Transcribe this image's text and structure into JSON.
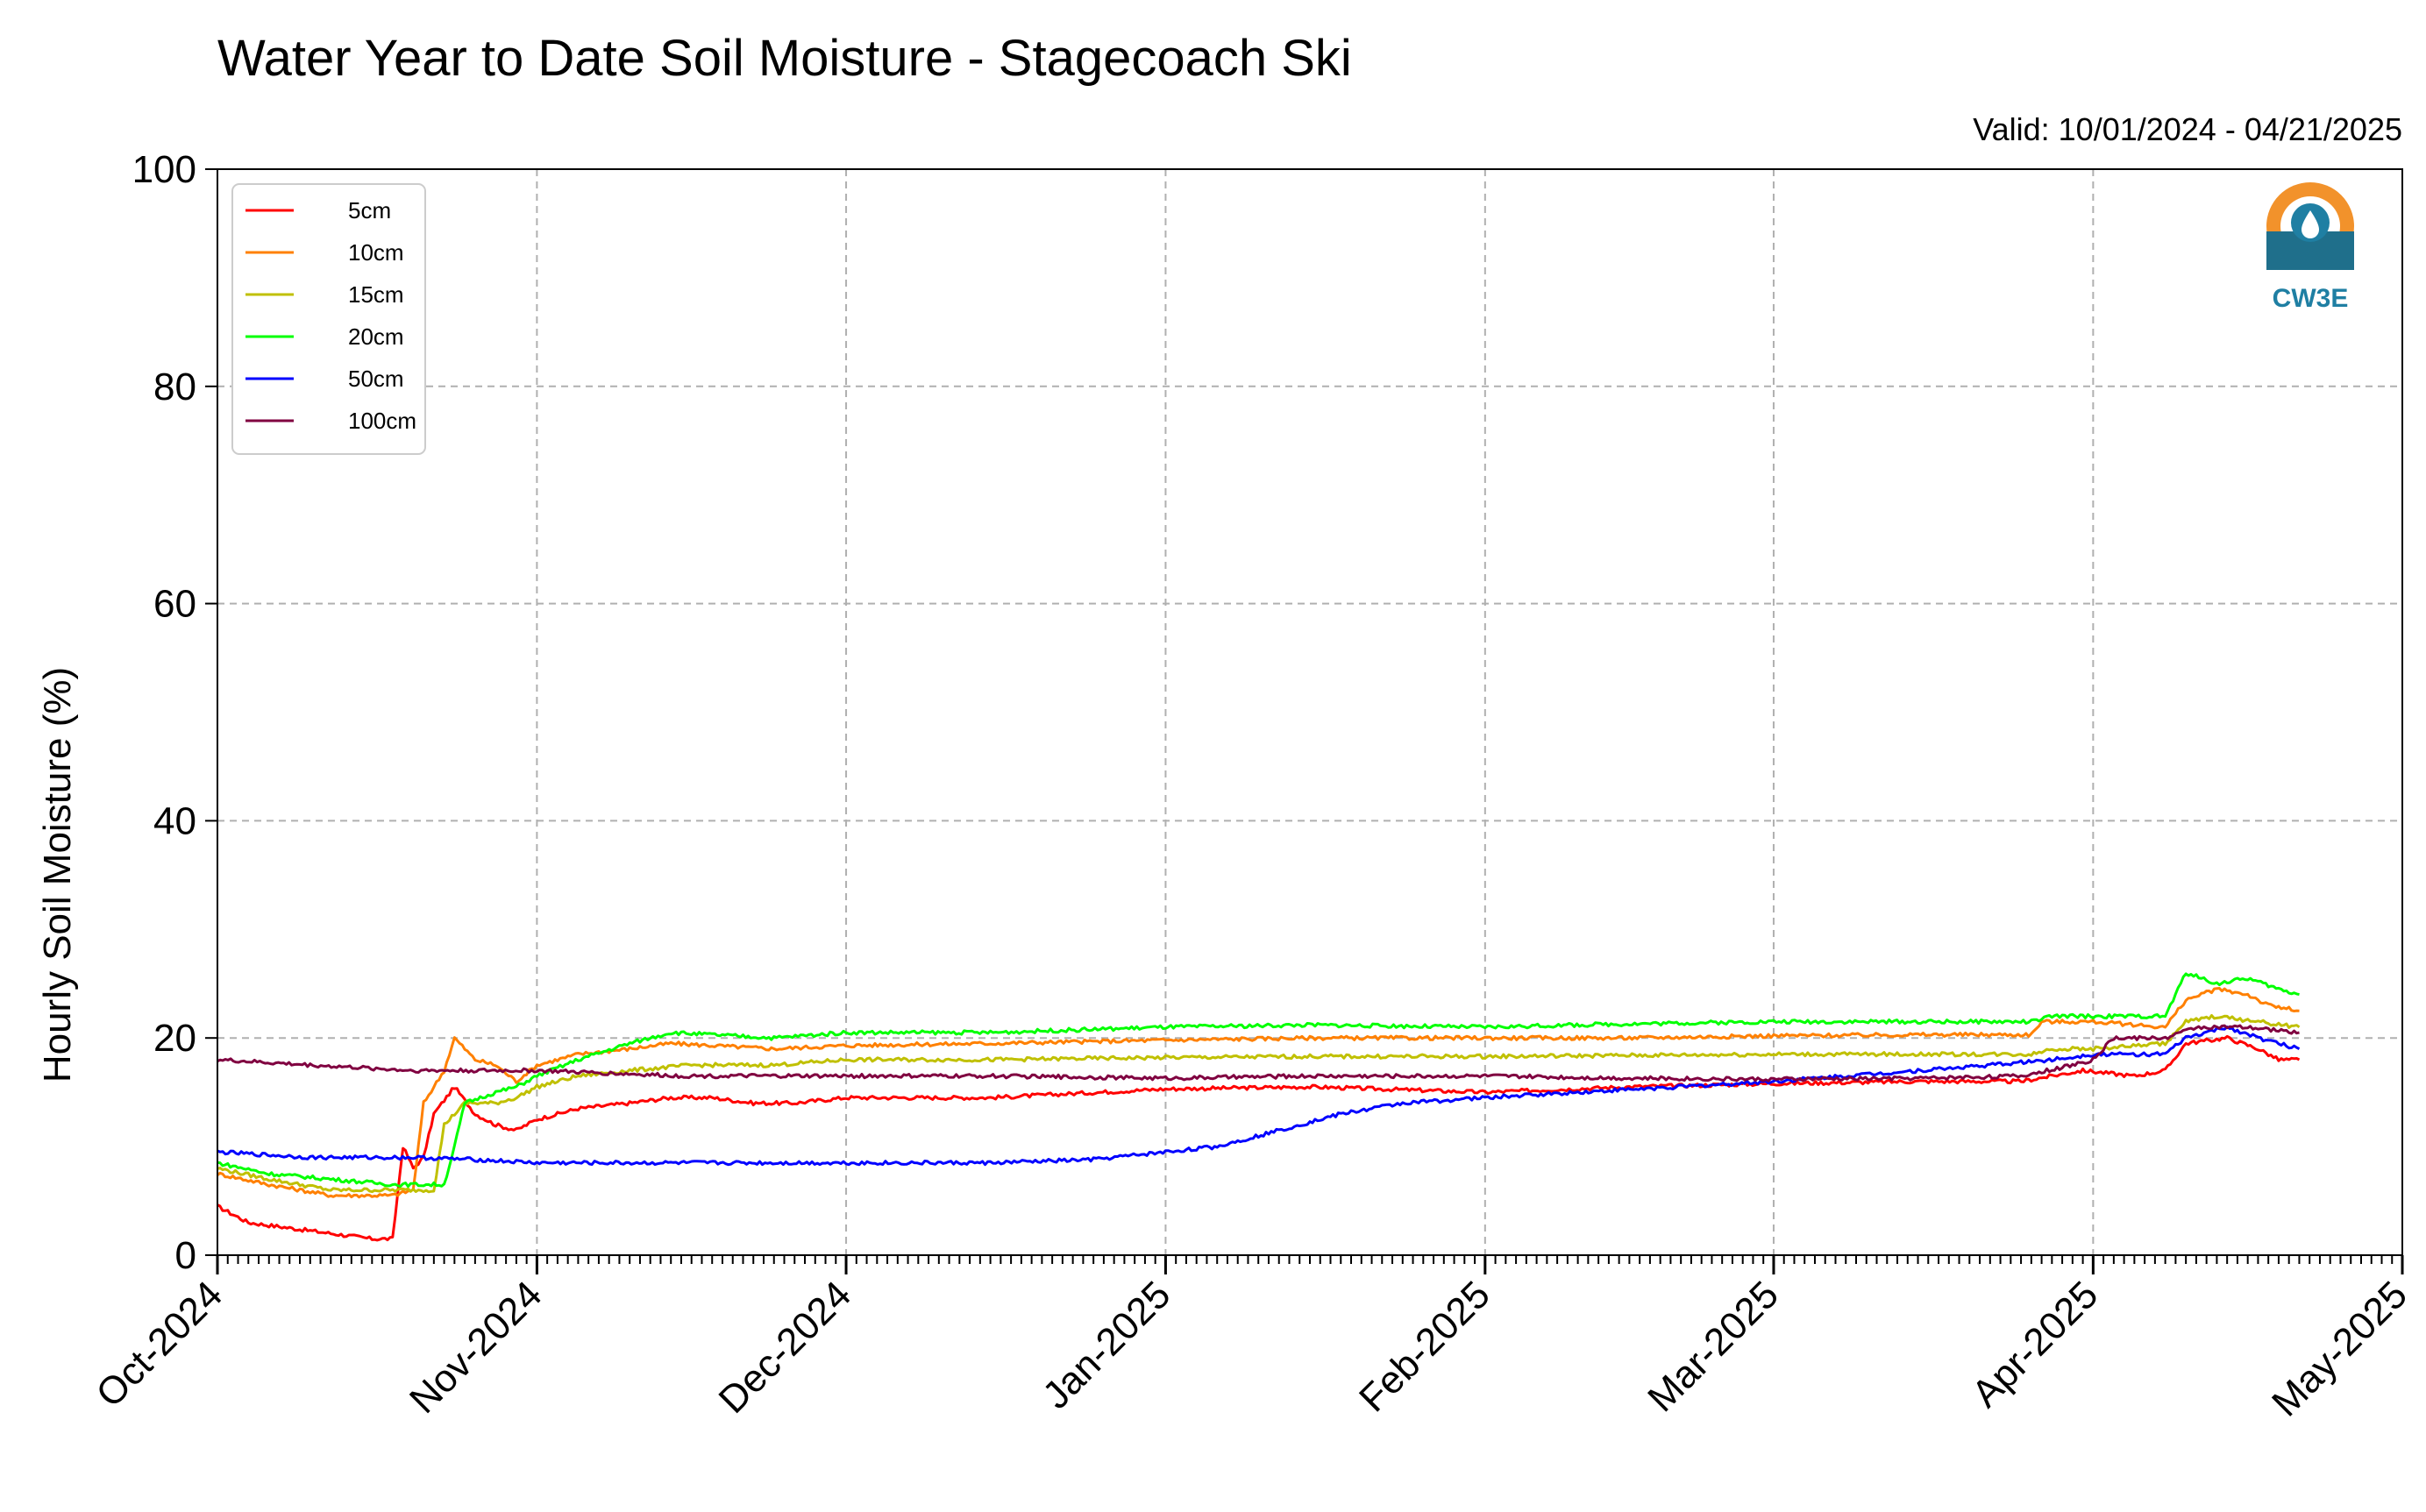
{
  "chart_data": {
    "type": "line",
    "title": "Water Year to Date Soil Moisture - Stagecoach Ski",
    "subtitle": "Valid: 10/01/2024 - 04/21/2025",
    "xlabel": "",
    "ylabel": "Hourly Soil Moisture (%)",
    "ylim": [
      0,
      100
    ],
    "y_ticks": [
      0,
      20,
      40,
      60,
      80,
      100
    ],
    "x_range": [
      "2024-10-01",
      "2025-05-01"
    ],
    "x_ticks": [
      {
        "date": "2024-10-01",
        "label": "Oct-2024"
      },
      {
        "date": "2024-11-01",
        "label": "Nov-2024"
      },
      {
        "date": "2024-12-01",
        "label": "Dec-2024"
      },
      {
        "date": "2025-01-01",
        "label": "Jan-2025"
      },
      {
        "date": "2025-02-01",
        "label": "Feb-2025"
      },
      {
        "date": "2025-03-01",
        "label": "Mar-2025"
      },
      {
        "date": "2025-04-01",
        "label": "Apr-2025"
      },
      {
        "date": "2025-05-01",
        "label": "May-2025"
      }
    ],
    "grid": true,
    "legend_position": "top-left",
    "logo_text": "CW3E",
    "series": [
      {
        "name": "5cm",
        "color": "#ff0000",
        "points": [
          [
            "2024-10-01",
            4.5
          ],
          [
            "2024-10-04",
            3.0
          ],
          [
            "2024-10-08",
            2.5
          ],
          [
            "2024-10-12",
            2.0
          ],
          [
            "2024-10-16",
            1.5
          ],
          [
            "2024-10-18",
            1.5
          ],
          [
            "2024-10-19",
            10.0
          ],
          [
            "2024-10-20",
            8.0
          ],
          [
            "2024-10-21",
            9.0
          ],
          [
            "2024-10-22",
            13.0
          ],
          [
            "2024-10-24",
            15.5
          ],
          [
            "2024-10-26",
            13.0
          ],
          [
            "2024-10-28",
            12.0
          ],
          [
            "2024-10-30",
            11.5
          ],
          [
            "2024-11-01",
            12.5
          ],
          [
            "2024-11-05",
            13.5
          ],
          [
            "2024-11-10",
            14.0
          ],
          [
            "2024-11-14",
            14.5
          ],
          [
            "2024-11-18",
            14.5
          ],
          [
            "2024-11-22",
            14.0
          ],
          [
            "2024-11-26",
            14.0
          ],
          [
            "2024-12-01",
            14.5
          ],
          [
            "2024-12-15",
            14.5
          ],
          [
            "2025-01-01",
            15.3
          ],
          [
            "2025-01-15",
            15.5
          ],
          [
            "2025-02-01",
            15.0
          ],
          [
            "2025-02-15",
            15.5
          ],
          [
            "2025-03-01",
            15.8
          ],
          [
            "2025-03-15",
            16.0
          ],
          [
            "2025-03-25",
            16.0
          ],
          [
            "2025-03-31",
            17.0
          ],
          [
            "2025-04-05",
            16.5
          ],
          [
            "2025-04-08",
            17.0
          ],
          [
            "2025-04-10",
            19.5
          ],
          [
            "2025-04-14",
            20.0
          ],
          [
            "2025-04-17",
            19.0
          ],
          [
            "2025-04-19",
            18.0
          ],
          [
            "2025-04-21",
            18.0
          ]
        ]
      },
      {
        "name": "10cm",
        "color": "#ff8000",
        "points": [
          [
            "2024-10-01",
            7.5
          ],
          [
            "2024-10-06",
            6.5
          ],
          [
            "2024-10-12",
            5.5
          ],
          [
            "2024-10-18",
            5.5
          ],
          [
            "2024-10-20",
            6.0
          ],
          [
            "2024-10-21",
            14.0
          ],
          [
            "2024-10-23",
            17.0
          ],
          [
            "2024-10-24",
            20.0
          ],
          [
            "2024-10-26",
            18.0
          ],
          [
            "2024-10-28",
            17.5
          ],
          [
            "2024-10-30",
            16.0
          ],
          [
            "2024-11-01",
            17.5
          ],
          [
            "2024-11-05",
            18.5
          ],
          [
            "2024-11-10",
            19.0
          ],
          [
            "2024-11-14",
            19.5
          ],
          [
            "2024-11-18",
            19.3
          ],
          [
            "2024-11-24",
            19.0
          ],
          [
            "2024-12-01",
            19.3
          ],
          [
            "2024-12-15",
            19.5
          ],
          [
            "2025-01-01",
            19.8
          ],
          [
            "2025-01-15",
            20.0
          ],
          [
            "2025-02-01",
            20.0
          ],
          [
            "2025-02-15",
            20.0
          ],
          [
            "2025-03-01",
            20.2
          ],
          [
            "2025-03-15",
            20.3
          ],
          [
            "2025-03-26",
            20.3
          ],
          [
            "2025-03-27",
            21.5
          ],
          [
            "2025-04-01",
            21.5
          ],
          [
            "2025-04-08",
            21.0
          ],
          [
            "2025-04-10",
            23.5
          ],
          [
            "2025-04-13",
            24.5
          ],
          [
            "2025-04-16",
            24.0
          ],
          [
            "2025-04-18",
            23.0
          ],
          [
            "2025-04-21",
            22.5
          ]
        ]
      },
      {
        "name": "15cm",
        "color": "#c0c000",
        "points": [
          [
            "2024-10-01",
            8.0
          ],
          [
            "2024-10-06",
            7.0
          ],
          [
            "2024-10-12",
            6.0
          ],
          [
            "2024-10-18",
            6.0
          ],
          [
            "2024-10-22",
            6.0
          ],
          [
            "2024-10-23",
            12.0
          ],
          [
            "2024-10-25",
            14.0
          ],
          [
            "2024-10-28",
            14.0
          ],
          [
            "2024-10-30",
            14.5
          ],
          [
            "2024-11-01",
            15.5
          ],
          [
            "2024-11-05",
            16.5
          ],
          [
            "2024-11-10",
            17.0
          ],
          [
            "2024-11-16",
            17.5
          ],
          [
            "2024-11-24",
            17.5
          ],
          [
            "2024-12-01",
            18.0
          ],
          [
            "2024-12-15",
            18.0
          ],
          [
            "2025-01-01",
            18.2
          ],
          [
            "2025-01-15",
            18.3
          ],
          [
            "2025-02-01",
            18.3
          ],
          [
            "2025-03-01",
            18.5
          ],
          [
            "2025-03-26",
            18.5
          ],
          [
            "2025-03-28",
            19.0
          ],
          [
            "2025-04-01",
            19.0
          ],
          [
            "2025-04-08",
            19.5
          ],
          [
            "2025-04-10",
            21.5
          ],
          [
            "2025-04-13",
            22.0
          ],
          [
            "2025-04-17",
            21.5
          ],
          [
            "2025-04-21",
            21.0
          ]
        ]
      },
      {
        "name": "20cm",
        "color": "#00ff00",
        "points": [
          [
            "2024-10-01",
            8.5
          ],
          [
            "2024-10-06",
            7.5
          ],
          [
            "2024-10-12",
            7.0
          ],
          [
            "2024-10-18",
            6.5
          ],
          [
            "2024-10-23",
            6.5
          ],
          [
            "2024-10-24",
            10.0
          ],
          [
            "2024-10-25",
            14.0
          ],
          [
            "2024-10-28",
            15.0
          ],
          [
            "2024-10-30",
            15.5
          ],
          [
            "2024-11-01",
            16.5
          ],
          [
            "2024-11-05",
            18.0
          ],
          [
            "2024-11-10",
            19.5
          ],
          [
            "2024-11-14",
            20.5
          ],
          [
            "2024-11-18",
            20.3
          ],
          [
            "2024-11-24",
            20.0
          ],
          [
            "2024-12-01",
            20.5
          ],
          [
            "2024-12-15",
            20.5
          ],
          [
            "2025-01-01",
            21.0
          ],
          [
            "2025-01-15",
            21.2
          ],
          [
            "2025-02-01",
            21.0
          ],
          [
            "2025-02-15",
            21.3
          ],
          [
            "2025-03-01",
            21.5
          ],
          [
            "2025-03-15",
            21.5
          ],
          [
            "2025-03-26",
            21.5
          ],
          [
            "2025-03-28",
            22.0
          ],
          [
            "2025-04-01",
            22.0
          ],
          [
            "2025-04-08",
            22.0
          ],
          [
            "2025-04-10",
            26.0
          ],
          [
            "2025-04-13",
            25.0
          ],
          [
            "2025-04-16",
            25.5
          ],
          [
            "2025-04-19",
            24.5
          ],
          [
            "2025-04-21",
            24.0
          ]
        ]
      },
      {
        "name": "50cm",
        "color": "#0000ff",
        "points": [
          [
            "2024-10-01",
            9.5
          ],
          [
            "2024-10-10",
            9.0
          ],
          [
            "2024-10-20",
            9.0
          ],
          [
            "2024-10-26",
            8.8
          ],
          [
            "2024-11-01",
            8.5
          ],
          [
            "2024-11-15",
            8.5
          ],
          [
            "2024-12-01",
            8.5
          ],
          [
            "2024-12-15",
            8.5
          ],
          [
            "2024-12-25",
            8.8
          ],
          [
            "2025-01-01",
            9.5
          ],
          [
            "2025-01-06",
            10.0
          ],
          [
            "2025-01-12",
            11.5
          ],
          [
            "2025-01-18",
            13.0
          ],
          [
            "2025-01-24",
            14.0
          ],
          [
            "2025-02-01",
            14.5
          ],
          [
            "2025-02-10",
            15.0
          ],
          [
            "2025-02-20",
            15.5
          ],
          [
            "2025-03-01",
            16.0
          ],
          [
            "2025-03-08",
            16.5
          ],
          [
            "2025-03-15",
            17.0
          ],
          [
            "2025-03-22",
            17.5
          ],
          [
            "2025-03-28",
            18.0
          ],
          [
            "2025-04-01",
            18.5
          ],
          [
            "2025-04-08",
            18.5
          ],
          [
            "2025-04-10",
            20.0
          ],
          [
            "2025-04-14",
            21.0
          ],
          [
            "2025-04-17",
            20.0
          ],
          [
            "2025-04-19",
            19.5
          ],
          [
            "2025-04-21",
            19.0
          ]
        ]
      },
      {
        "name": "100cm",
        "color": "#800040",
        "points": [
          [
            "2024-10-01",
            18.0
          ],
          [
            "2024-10-10",
            17.5
          ],
          [
            "2024-10-20",
            17.0
          ],
          [
            "2024-11-01",
            17.0
          ],
          [
            "2024-11-15",
            16.5
          ],
          [
            "2024-12-01",
            16.5
          ],
          [
            "2024-12-15",
            16.5
          ],
          [
            "2025-01-01",
            16.3
          ],
          [
            "2025-01-15",
            16.5
          ],
          [
            "2025-02-01",
            16.5
          ],
          [
            "2025-02-15",
            16.3
          ],
          [
            "2025-03-01",
            16.2
          ],
          [
            "2025-03-15",
            16.3
          ],
          [
            "2025-03-25",
            16.5
          ],
          [
            "2025-03-30",
            17.5
          ],
          [
            "2025-04-01",
            18.0
          ],
          [
            "2025-04-03",
            20.0
          ],
          [
            "2025-04-08",
            20.0
          ],
          [
            "2025-04-11",
            21.0
          ],
          [
            "2025-04-15",
            21.0
          ],
          [
            "2025-04-18",
            20.8
          ],
          [
            "2025-04-21",
            20.5
          ]
        ]
      }
    ]
  }
}
